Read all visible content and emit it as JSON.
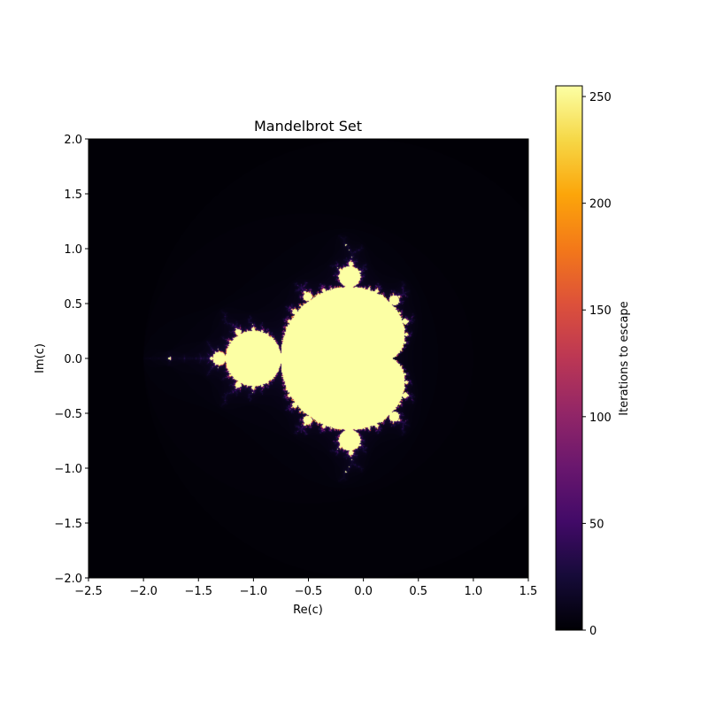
{
  "chart_data": {
    "type": "heatmap",
    "title": "Mandelbrot Set",
    "xlabel": "Re(c)",
    "ylabel": "Im(c)",
    "xlim": [
      -2.5,
      1.5
    ],
    "ylim": [
      -2.0,
      2.0
    ],
    "x_ticks": [
      -2.5,
      -2.0,
      -1.5,
      -1.0,
      -0.5,
      0.0,
      0.5,
      1.0,
      1.5
    ],
    "x_tick_labels": [
      "−2.5",
      "−2.0",
      "−1.5",
      "−1.0",
      "−0.5",
      "0.0",
      "0.5",
      "1.0",
      "1.5"
    ],
    "y_ticks": [
      2.0,
      1.5,
      1.0,
      0.5,
      0.0,
      -0.5,
      -1.0,
      -1.5,
      -2.0
    ],
    "y_tick_labels": [
      "2.0",
      "1.5",
      "1.0",
      "0.5",
      "0.0",
      "−0.5",
      "−1.0",
      "−1.5",
      "−2.0"
    ],
    "max_iterations": 255,
    "colormap": "inferno",
    "colorbar": {
      "label": "Iterations to escape",
      "range": [
        0,
        255
      ],
      "ticks": [
        0,
        50,
        100,
        150,
        200,
        250
      ],
      "tick_labels": [
        "0",
        "50",
        "100",
        "150",
        "200",
        "250"
      ]
    },
    "grid": false
  }
}
